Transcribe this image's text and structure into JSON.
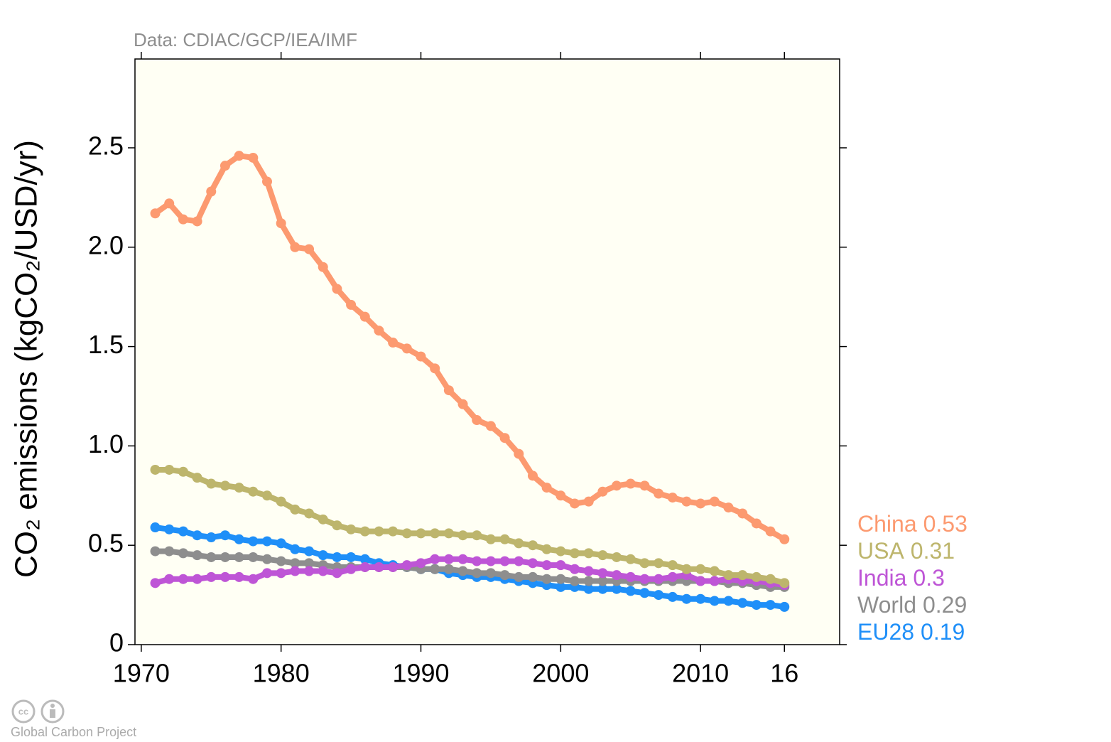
{
  "chart_data": {
    "type": "line",
    "title": "Data: CDIAC/GCP/IEA/IMF",
    "y_label": "CO₂ emissions (kgCO₂/USD/yr)",
    "footer": "Global Carbon Project",
    "x": [
      1971,
      1972,
      1973,
      1974,
      1975,
      1976,
      1977,
      1978,
      1979,
      1980,
      1981,
      1982,
      1983,
      1984,
      1985,
      1986,
      1987,
      1988,
      1989,
      1990,
      1991,
      1992,
      1993,
      1994,
      1995,
      1996,
      1997,
      1998,
      1999,
      2000,
      2001,
      2002,
      2003,
      2004,
      2005,
      2006,
      2007,
      2008,
      2009,
      2010,
      2011,
      2012,
      2013,
      2014,
      2015,
      2016
    ],
    "series": [
      {
        "name": "China",
        "color": "#fc9a70",
        "values": [
          2.17,
          2.22,
          2.14,
          2.13,
          2.28,
          2.41,
          2.46,
          2.45,
          2.33,
          2.12,
          2.0,
          1.99,
          1.9,
          1.79,
          1.71,
          1.65,
          1.58,
          1.52,
          1.49,
          1.45,
          1.39,
          1.28,
          1.21,
          1.13,
          1.1,
          1.04,
          0.96,
          0.85,
          0.79,
          0.75,
          0.71,
          0.72,
          0.77,
          0.8,
          0.81,
          0.8,
          0.76,
          0.74,
          0.72,
          0.71,
          0.72,
          0.69,
          0.66,
          0.61,
          0.57,
          0.53
        ]
      },
      {
        "name": "USA",
        "color": "#bdb56c",
        "values": [
          0.88,
          0.88,
          0.87,
          0.84,
          0.81,
          0.8,
          0.79,
          0.77,
          0.75,
          0.72,
          0.68,
          0.66,
          0.63,
          0.6,
          0.58,
          0.57,
          0.57,
          0.57,
          0.56,
          0.56,
          0.56,
          0.56,
          0.55,
          0.55,
          0.53,
          0.53,
          0.51,
          0.5,
          0.48,
          0.47,
          0.46,
          0.46,
          0.45,
          0.44,
          0.43,
          0.41,
          0.41,
          0.4,
          0.38,
          0.38,
          0.37,
          0.35,
          0.35,
          0.34,
          0.33,
          0.31
        ]
      },
      {
        "name": "India",
        "color": "#be55d6",
        "values": [
          0.31,
          0.33,
          0.33,
          0.33,
          0.34,
          0.34,
          0.34,
          0.33,
          0.36,
          0.36,
          0.37,
          0.37,
          0.37,
          0.36,
          0.38,
          0.39,
          0.39,
          0.39,
          0.4,
          0.41,
          0.43,
          0.43,
          0.43,
          0.42,
          0.42,
          0.42,
          0.42,
          0.41,
          0.4,
          0.4,
          0.38,
          0.37,
          0.36,
          0.35,
          0.34,
          0.33,
          0.33,
          0.34,
          0.35,
          0.32,
          0.32,
          0.33,
          0.32,
          0.32,
          0.31,
          0.3
        ]
      },
      {
        "name": "World",
        "color": "#8e8e8e",
        "values": [
          0.47,
          0.47,
          0.46,
          0.45,
          0.44,
          0.44,
          0.44,
          0.44,
          0.43,
          0.42,
          0.41,
          0.41,
          0.4,
          0.39,
          0.39,
          0.39,
          0.39,
          0.39,
          0.39,
          0.38,
          0.38,
          0.38,
          0.37,
          0.36,
          0.36,
          0.35,
          0.34,
          0.34,
          0.33,
          0.33,
          0.32,
          0.32,
          0.32,
          0.32,
          0.32,
          0.32,
          0.32,
          0.32,
          0.32,
          0.32,
          0.32,
          0.31,
          0.31,
          0.3,
          0.29,
          0.29
        ]
      },
      {
        "name": "EU28",
        "color": "#1f8ff8",
        "values": [
          0.59,
          0.58,
          0.57,
          0.55,
          0.54,
          0.55,
          0.53,
          0.52,
          0.52,
          0.51,
          0.48,
          0.47,
          0.45,
          0.44,
          0.44,
          0.43,
          0.41,
          0.4,
          0.39,
          0.38,
          0.38,
          0.36,
          0.35,
          0.34,
          0.34,
          0.33,
          0.32,
          0.31,
          0.3,
          0.29,
          0.29,
          0.28,
          0.28,
          0.28,
          0.27,
          0.26,
          0.25,
          0.24,
          0.23,
          0.23,
          0.22,
          0.22,
          0.21,
          0.2,
          0.2,
          0.19
        ]
      }
    ],
    "xlim": [
      1969.55,
      2019.95
    ],
    "ylim": [
      0,
      2.947
    ],
    "xticks": [
      1970,
      1980,
      1990,
      2000,
      2010,
      {
        "value": 2016,
        "label": "16"
      }
    ],
    "yticks": [
      0,
      0.5,
      {
        "value": 1,
        "label": "1.0"
      },
      1.5,
      {
        "value": 2,
        "label": "2.0"
      },
      2.5
    ]
  }
}
